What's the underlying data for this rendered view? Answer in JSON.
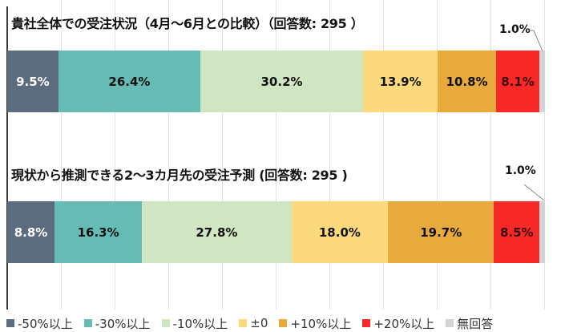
{
  "chart_data": [
    {
      "type": "bar",
      "orientation": "horizontal-stacked-100",
      "title": "貴社全体での受注状況（4月～6月との比較）（回答数: 295 ）",
      "categories": [
        "-50%以上",
        "-30%以上",
        "-10%以上",
        "±0",
        "+10%以上",
        "+20%以上",
        "無回答"
      ],
      "values": [
        9.5,
        26.4,
        30.2,
        13.9,
        10.8,
        8.1,
        1.0
      ],
      "labels": [
        "9.5%",
        "26.4%",
        "30.2%",
        "13.9%",
        "10.8%",
        "8.1%",
        "1.0%"
      ],
      "xlim": [
        0,
        100
      ],
      "grid": true
    },
    {
      "type": "bar",
      "orientation": "horizontal-stacked-100",
      "title": "現状から推測できる2～3カ月先の受注予測 (回答数: 295 )",
      "categories": [
        "-50%以上",
        "-30%以上",
        "-10%以上",
        "±0",
        "+10%以上",
        "+20%以上",
        "無回答"
      ],
      "values": [
        8.8,
        16.3,
        27.8,
        18.0,
        19.7,
        8.5,
        1.0
      ],
      "labels": [
        "8.8%",
        "16.3%",
        "27.8%",
        "18.0%",
        "19.7%",
        "8.5%",
        "1.0%"
      ],
      "xlim": [
        0,
        100
      ],
      "grid": true
    }
  ],
  "titles": {
    "chart1": "貴社全体での受注状況（4月～6月との比較）（回答数: 295 ）",
    "chart2": "現状から推測できる2～3カ月先の受注予測 (回答数: 295 )"
  },
  "bars": {
    "bar1": {
      "segments": [
        {
          "value": 9.5,
          "label": "9.5%",
          "color": "#5d6b7f",
          "text": "light"
        },
        {
          "value": 26.4,
          "label": "26.4%",
          "color": "#66bcb4",
          "text": "dark"
        },
        {
          "value": 30.2,
          "label": "30.2%",
          "color": "#d0e6c2",
          "text": "dark"
        },
        {
          "value": 13.9,
          "label": "13.9%",
          "color": "#fbd97c",
          "text": "dark"
        },
        {
          "value": 10.8,
          "label": "10.8%",
          "color": "#e8aa3c",
          "text": "dark"
        },
        {
          "value": 8.1,
          "label": "8.1%",
          "color": "#f72828",
          "text": "red"
        },
        {
          "value": 1.0,
          "label": "",
          "color": "#d5d3d8",
          "text": "dark"
        }
      ],
      "callout": "1.0%"
    },
    "bar2": {
      "segments": [
        {
          "value": 8.8,
          "label": "8.8%",
          "color": "#5d6b7f",
          "text": "light"
        },
        {
          "value": 16.3,
          "label": "16.3%",
          "color": "#66bcb4",
          "text": "dark"
        },
        {
          "value": 27.8,
          "label": "27.8%",
          "color": "#d0e6c2",
          "text": "dark"
        },
        {
          "value": 18.0,
          "label": "18.0%",
          "color": "#fbd97c",
          "text": "dark"
        },
        {
          "value": 19.7,
          "label": "19.7%",
          "color": "#e8aa3c",
          "text": "dark"
        },
        {
          "value": 8.5,
          "label": "8.5%",
          "color": "#f72828",
          "text": "red"
        },
        {
          "value": 1.0,
          "label": "",
          "color": "#d5d3d8",
          "text": "dark"
        }
      ],
      "callout": "1.0%"
    }
  },
  "legend": [
    {
      "label": "-50%以上",
      "color": "#5d6b7f"
    },
    {
      "label": "-30%以上",
      "color": "#66bcb4"
    },
    {
      "label": "-10%以上",
      "color": "#d0e6c2"
    },
    {
      "label": "±0",
      "color": "#fbd97c"
    },
    {
      "label": "+10%以上",
      "color": "#e8aa3c"
    },
    {
      "label": "+20%以上",
      "color": "#f72828"
    },
    {
      "label": "無回答",
      "color": "#d5d3d8"
    }
  ]
}
